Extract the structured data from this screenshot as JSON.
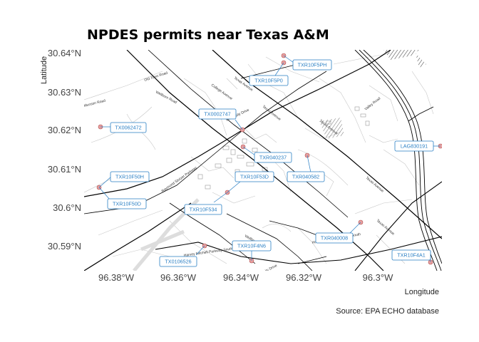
{
  "title": "NPDES permits near Texas A&M",
  "axes": {
    "ylabel": "Latitude",
    "xlabel": "Longitude",
    "yticks": [
      "30.64°N",
      "30.63°N",
      "30.62°N",
      "30.61°N",
      "30.6°N",
      "30.59°N"
    ],
    "xticks": [
      "96.38°W",
      "96.36°W",
      "96.34°W",
      "96.32°W",
      "96.3°W"
    ]
  },
  "caption": "Source: EPA ECHO database",
  "colors": {
    "point_fill": "#e8a0a0",
    "point_stroke": "#b05050",
    "label_border": "#2a7fc4",
    "label_text": "#2a7fc4",
    "road": "#000000",
    "minor_road": "#bbbbbb"
  },
  "permits": [
    {
      "id": "TXR10F5PH"
    },
    {
      "id": "TXR10F5P0"
    },
    {
      "id": "TX0002747"
    },
    {
      "id": "TX0062472"
    },
    {
      "id": "TXR040237"
    },
    {
      "id": "LAG830191"
    },
    {
      "id": "TXR10F50H"
    },
    {
      "id": "TXR10F53D"
    },
    {
      "id": "TXR040582"
    },
    {
      "id": "TXR10F50D"
    },
    {
      "id": "TXR10F534"
    },
    {
      "id": "TXR040008"
    },
    {
      "id": "TXR10F4N6"
    },
    {
      "id": "TX0106526"
    },
    {
      "id": "TXR10F4A1"
    }
  ]
}
